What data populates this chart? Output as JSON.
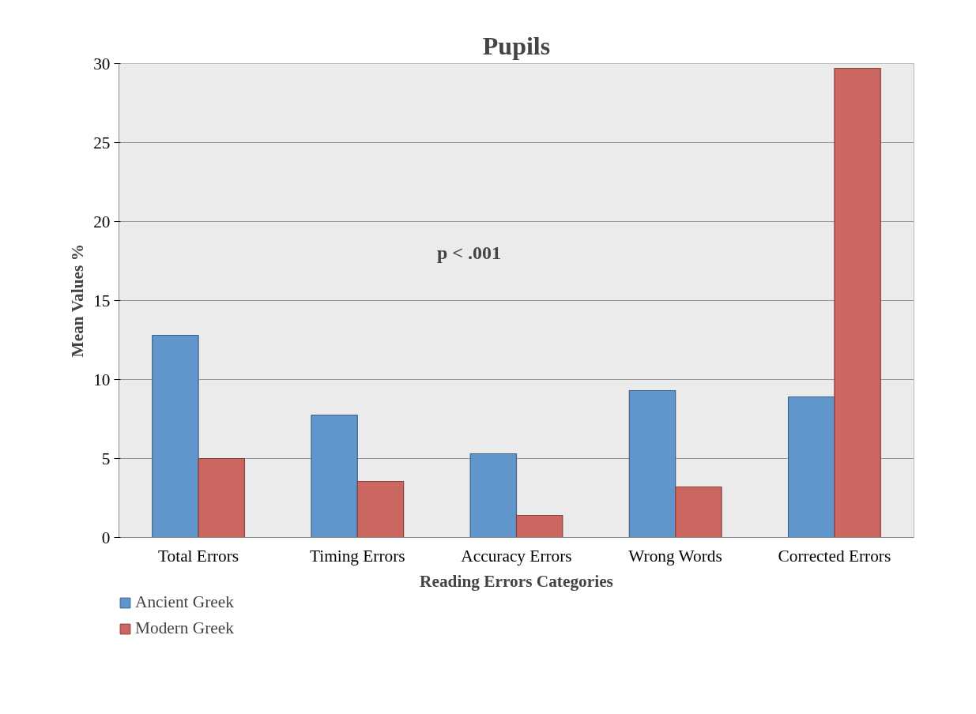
{
  "chart_data": {
    "type": "bar",
    "title": "Pupils",
    "xlabel": "Reading Errors Categories",
    "ylabel": "Mean Values %",
    "categories": [
      "Total Errors",
      "Timing Errors",
      "Accuracy Errors",
      "Wrong Words",
      "Corrected Errors"
    ],
    "series": [
      {
        "name": "Ancient Greek",
        "color": "#6096cc",
        "values": [
          12.8,
          7.75,
          5.3,
          9.3,
          8.9
        ]
      },
      {
        "name": "Modern Greek",
        "color": "#cc6660",
        "values": [
          5.0,
          3.55,
          1.4,
          3.2,
          29.7
        ]
      }
    ],
    "ylim": [
      0,
      30
    ],
    "yticks": [
      0,
      5,
      10,
      15,
      20,
      25,
      30
    ],
    "grid": "y",
    "legend": "bottom left",
    "annotations": [
      "p < .001"
    ]
  }
}
